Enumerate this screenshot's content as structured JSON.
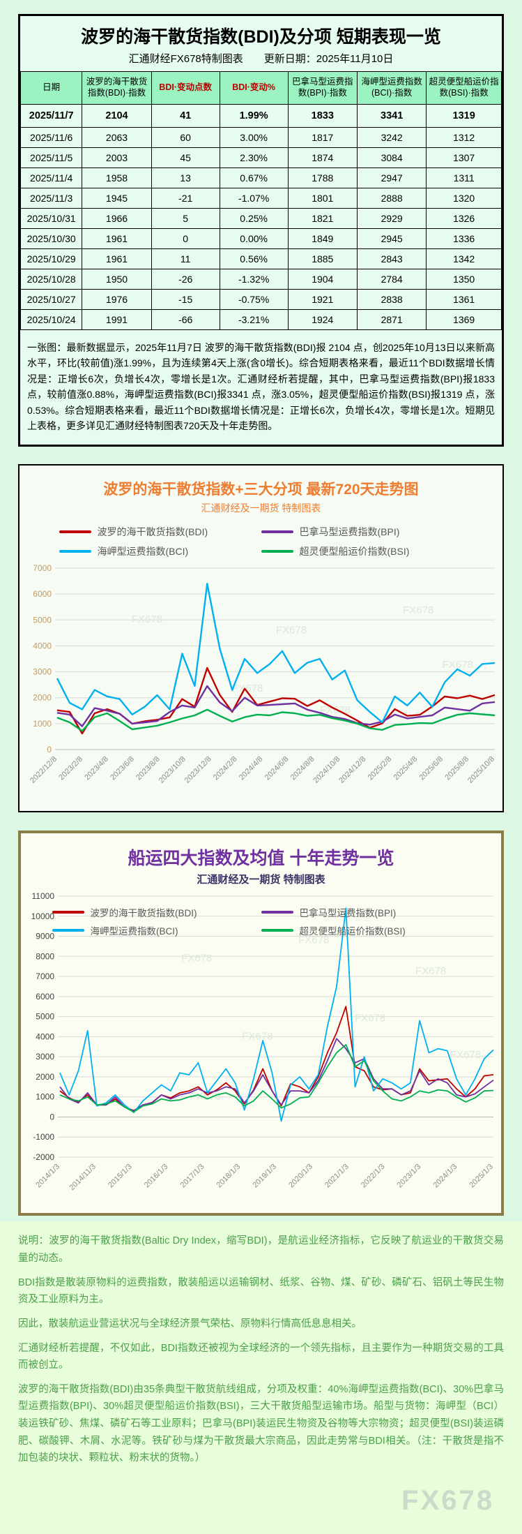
{
  "page": {
    "watermark": "FX678"
  },
  "table_section": {
    "title": "波罗的海干散货指数(BDI)及分项  短期表现一览",
    "subtitle": "汇通财经FX678特制图表　　更新日期：2025年11月10日",
    "columns": [
      "日期",
      "波罗的海干散货指数(BDI)·指数",
      "BDI·变动点数",
      "BDI·变动%",
      "巴拿马型运费指数(BPI)·指数",
      "海岬型运费指数(BCI)·指数",
      "超灵便型船运价指数(BSI)·指数"
    ],
    "rows": [
      [
        "2025/11/7",
        "2104",
        "41",
        "1.99%",
        "1833",
        "3341",
        "1319"
      ],
      [
        "2025/11/6",
        "2063",
        "60",
        "3.00%",
        "1817",
        "3242",
        "1312"
      ],
      [
        "2025/11/5",
        "2003",
        "45",
        "2.30%",
        "1874",
        "3084",
        "1307"
      ],
      [
        "2025/11/4",
        "1958",
        "13",
        "0.67%",
        "1788",
        "2947",
        "1311"
      ],
      [
        "2025/11/3",
        "1945",
        "-21",
        "-1.07%",
        "1801",
        "2888",
        "1320"
      ],
      [
        "2025/10/31",
        "1966",
        "5",
        "0.25%",
        "1821",
        "2929",
        "1326"
      ],
      [
        "2025/10/30",
        "1961",
        "0",
        "0.00%",
        "1849",
        "2945",
        "1336"
      ],
      [
        "2025/10/29",
        "1961",
        "11",
        "0.56%",
        "1885",
        "2843",
        "1342"
      ],
      [
        "2025/10/28",
        "1950",
        "-26",
        "-1.32%",
        "1904",
        "2784",
        "1350"
      ],
      [
        "2025/10/27",
        "1976",
        "-15",
        "-0.75%",
        "1921",
        "2838",
        "1361"
      ],
      [
        "2025/10/24",
        "1991",
        "-66",
        "-3.21%",
        "1924",
        "2871",
        "1369"
      ]
    ],
    "summary": "一张图：最新数据显示，2025年11月7日 波罗的海干散货指数(BDI)报 2104 点，创2025年10月13日以来新高水平，环比(较前值)涨1.99%，且为连续第4天上涨(含0增长)。综合短期表格来看，最近11个BDI数据增长情况是：正增长6次，负增长4次，零增长是1次。汇通财经析若提醒，其中，巴拿马型运费指数(BPI)报1833 点，较前值涨0.88%，海岬型运费指数(BCI)报3341 点，涨3.05%，超灵便型船运价指数(BSI)报1319 点，涨0.53%。综合短期表格来看，最近11个BDI数据增长情况是：正增长6次，负增长4次，零增长是1次。短期见上表格，更多详见汇通财经特制图表720天及十年走势图。"
  },
  "chart_data": [
    {
      "type": "line",
      "title": "波罗的海干散货指数+三大分项  最新720天走势图",
      "subtitle": "汇通财经及一期货 特制图表",
      "ylim": [
        0,
        7000
      ],
      "ystep": 1000,
      "grid": true,
      "legend_position": "top",
      "x_labels": [
        "2022/12/8",
        "2023/2/8",
        "2023/4/8",
        "2023/6/8",
        "2023/8/8",
        "2023/10/8",
        "2023/12/8",
        "2024/2/8",
        "2024/4/8",
        "2024/6/8",
        "2024/8/8",
        "2024/10/8",
        "2024/12/8",
        "2025/2/8",
        "2025/4/8",
        "2025/6/8",
        "2025/8/8",
        "2025/10/8"
      ],
      "series": [
        {
          "name": "波罗的海干散货指数(BDI)",
          "color": "#c00000",
          "values": [
            1515,
            1450,
            620,
            1400,
            1560,
            1380,
            1000,
            1090,
            1150,
            1240,
            1950,
            1650,
            3150,
            2110,
            1450,
            2350,
            1720,
            1850,
            1980,
            1960,
            1680,
            1900,
            1620,
            1380,
            1120,
            840,
            1010,
            1560,
            1300,
            1340,
            1660,
            2050,
            1980,
            2080,
            1950,
            2104
          ]
        },
        {
          "name": "巴拿马型运费指数(BPI)",
          "color": "#7030a0",
          "values": [
            1420,
            1350,
            900,
            1600,
            1500,
            1380,
            1000,
            1050,
            1100,
            1450,
            1700,
            1620,
            2450,
            1820,
            1480,
            2000,
            1700,
            1720,
            1750,
            1780,
            1540,
            1420,
            1260,
            1180,
            1020,
            960,
            1080,
            1350,
            1200,
            1260,
            1320,
            1620,
            1560,
            1500,
            1780,
            1833
          ]
        },
        {
          "name": "海岬型运费指数(BCI)",
          "color": "#00b0f0",
          "values": [
            2750,
            1800,
            1550,
            2300,
            2050,
            1950,
            1350,
            1650,
            2100,
            1550,
            3700,
            2450,
            6400,
            3900,
            2300,
            3500,
            2950,
            3300,
            3800,
            2950,
            3350,
            3500,
            2700,
            3050,
            1900,
            1450,
            1050,
            2050,
            1700,
            2200,
            1650,
            2600,
            3100,
            2850,
            3300,
            3341
          ]
        },
        {
          "name": "超灵便型船运价指数(BSI)",
          "color": "#00b050",
          "values": [
            1230,
            1050,
            720,
            1250,
            1400,
            1100,
            780,
            850,
            920,
            1050,
            1200,
            1320,
            1540,
            1300,
            1080,
            1250,
            1350,
            1320,
            1440,
            1400,
            1300,
            1340,
            1210,
            1120,
            1000,
            820,
            760,
            950,
            980,
            1020,
            1010,
            1190,
            1340,
            1400,
            1360,
            1319
          ]
        }
      ]
    },
    {
      "type": "line",
      "title": "船运四大指数及均值 十年走势一览",
      "subtitle": "汇通财经及一期货 特制图表",
      "ylim": [
        -2000,
        11000
      ],
      "ystep": 1000,
      "grid": true,
      "legend_position": "top-inside",
      "x_labels": [
        "2014/1/3",
        "2014/11/3",
        "2015/1/3",
        "2016/1/3",
        "2017/1/3",
        "2018/1/3",
        "2019/1/3",
        "2020/1/3",
        "2021/1/3",
        "2022/1/3",
        "2023/1/3",
        "2024/1/3",
        "2025/1/3"
      ],
      "series": [
        {
          "name": "波罗的海干散货指数(BDI)",
          "color": "#c00000",
          "values": [
            1300,
            950,
            750,
            1100,
            600,
            600,
            900,
            500,
            320,
            600,
            720,
            1100,
            950,
            1200,
            1300,
            1500,
            1100,
            1350,
            1700,
            1300,
            650,
            1350,
            2400,
            1300,
            550,
            1650,
            1500,
            1200,
            2000,
            3200,
            4200,
            5500,
            2500,
            2300,
            1500,
            1350,
            1400,
            1100,
            1200,
            2400,
            1800,
            1850,
            1900,
            1400,
            1000,
            1400,
            2050,
            2104
          ]
        },
        {
          "name": "巴拿马型运费指数(BPI)",
          "color": "#7030a0",
          "values": [
            1500,
            900,
            700,
            1200,
            600,
            600,
            1000,
            500,
            300,
            600,
            700,
            1100,
            900,
            1100,
            1200,
            1400,
            1200,
            1300,
            1500,
            1400,
            700,
            1300,
            2100,
            1300,
            600,
            1300,
            1300,
            1200,
            1800,
            2800,
            3900,
            3400,
            2700,
            2900,
            1900,
            1400,
            1400,
            1100,
            1300,
            2300,
            1600,
            1900,
            1700,
            1100,
            1000,
            1150,
            1500,
            1833
          ]
        },
        {
          "name": "海岬型运费指数(BCI)",
          "color": "#00b0f0",
          "values": [
            2200,
            1100,
            2300,
            4300,
            550,
            700,
            1100,
            600,
            220,
            800,
            1200,
            1600,
            1300,
            2200,
            2100,
            2700,
            1200,
            1800,
            2400,
            1700,
            350,
            1900,
            3800,
            2200,
            -200,
            1600,
            2000,
            1400,
            2100,
            4500,
            6500,
            10400,
            1500,
            3000,
            1300,
            1900,
            1700,
            1400,
            1700,
            4800,
            3200,
            3400,
            3300,
            1900,
            1100,
            1900,
            2900,
            3341
          ]
        },
        {
          "name": "超灵便型船运价指数(BSI)",
          "color": "#00b050",
          "values": [
            1100,
            900,
            800,
            1000,
            600,
            650,
            800,
            500,
            250,
            550,
            650,
            900,
            800,
            850,
            1000,
            1100,
            900,
            1100,
            1200,
            1000,
            550,
            800,
            1300,
            900,
            450,
            650,
            950,
            1000,
            1700,
            2500,
            3200,
            3600,
            2500,
            2800,
            1800,
            1300,
            900,
            800,
            1000,
            1300,
            1200,
            1350,
            1300,
            1000,
            750,
            950,
            1300,
            1319
          ]
        }
      ]
    }
  ],
  "footer": {
    "paragraphs": [
      "说明：波罗的海干散货指数(Baltic Dry Index，缩写BDI)，是航运业经济指标，它反映了航运业的干散货交易量的动态。",
      "BDI指数是散装原物料的运费指数，散装船运以运输钢材、纸浆、谷物、煤、矿砂、磷矿石、铝矾土等民生物资及工业原料为主。",
      "因此，散装航运业营运状况与全球经济景气荣枯、原物料行情高低息息相关。",
      "汇通财经析若提醒，不仅如此，BDI指数还被视为全球经济的一个领先指标，且主要作为一种期货交易的工具而被创立。",
      "波罗的海干散货指数(BDI)由35条典型干散货航线组成，分项及权重：40%海岬型运费指数(BCI)、30%巴拿马型运费指数(BPI)、30%超灵便型船运价指数(BSI)，三大干散货船型运输市场。船型与货物：海岬型（BCI）装运铁矿砂、焦煤、磷矿石等工业原料；巴拿马(BPI)装运民生物资及谷物等大宗物资；超灵便型(BSI)装运磷肥、碳酸钾、木屑、水泥等。铁矿砂与煤为干散货最大宗商品，因此走势常与BDI相关。（注：干散货是指不加包装的块状、颗粒状、粉末状的货物。）"
    ],
    "watermark": "FX678"
  }
}
